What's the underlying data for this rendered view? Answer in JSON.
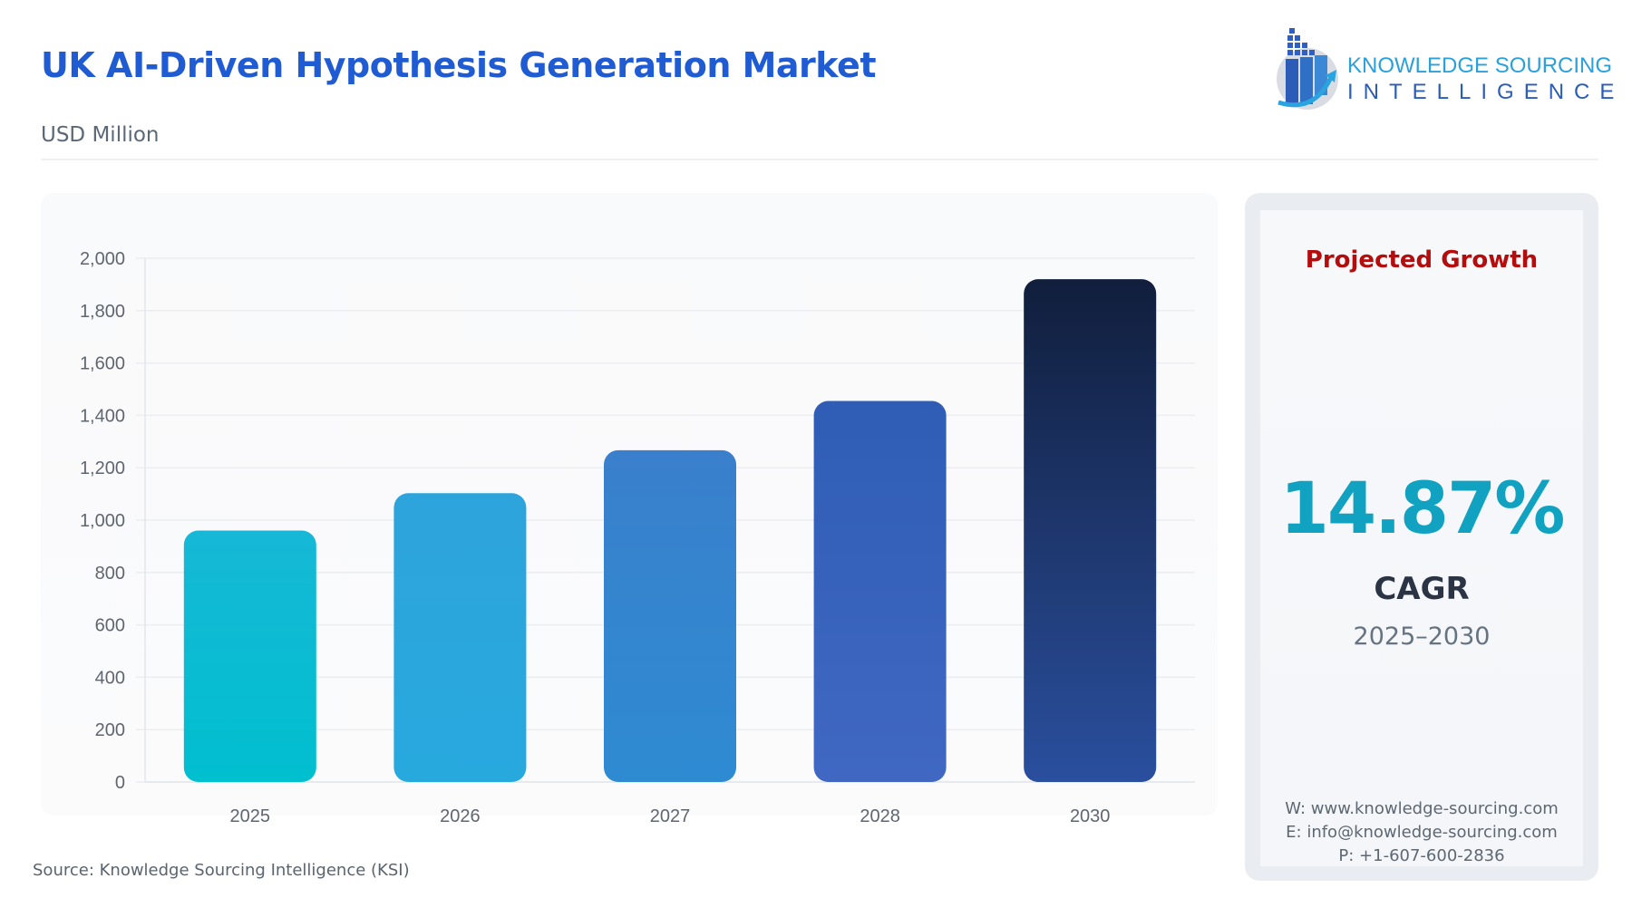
{
  "header": {
    "title": "UK AI-Driven Hypothesis Generation Market",
    "subtitle": "USD Million"
  },
  "logo": {
    "line1": "KNOWLEDGE SOURCING",
    "line2": "INTELLIGENCE"
  },
  "chart_data": {
    "type": "bar",
    "title": "",
    "xlabel": "",
    "ylabel": "",
    "categories": [
      "2025",
      "2026",
      "2027",
      "2028",
      "2030"
    ],
    "values": [
      960,
      1103,
      1267,
      1455,
      1920
    ],
    "ylim": [
      0,
      2000
    ],
    "yticks": [
      0,
      200,
      400,
      600,
      800,
      1000,
      1200,
      1400,
      1600,
      1800,
      2000
    ],
    "ytick_labels": [
      "0",
      "200",
      "400",
      "600",
      "800",
      "1,000",
      "1,200",
      "1,400",
      "1,600",
      "1,800",
      "2,000"
    ],
    "grid": true,
    "bar_colors": [
      [
        "#16b8d6",
        "#00bfcf"
      ],
      [
        "#2ea4dc",
        "#27a9de"
      ],
      [
        "#3a7fcc",
        "#2e8bd2"
      ],
      [
        "#2f5db5",
        "#4068c3"
      ],
      [
        "#111e3c",
        "#2a4f9e"
      ]
    ]
  },
  "source": "Source: Knowledge Sourcing Intelligence (KSI)",
  "panel": {
    "heading": "Projected Growth",
    "cagr_value": "14.87%",
    "cagr_label": "CAGR",
    "period": "2025–2030",
    "website": "W: www.knowledge-sourcing.com",
    "email": "E: info@knowledge-sourcing.com",
    "phone": "P: +1-607-600-2836"
  },
  "colors": {
    "title": "#1f5bd3",
    "heading": "#b50d0d",
    "cagr": "#10a2c0"
  }
}
